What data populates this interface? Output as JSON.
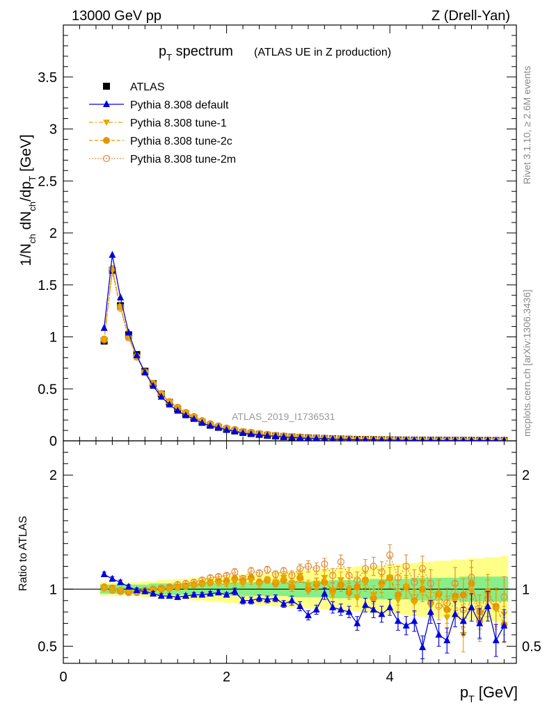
{
  "header": {
    "energy": "13000 GeV pp",
    "process": "Z (Drell-Yan)",
    "title_main": "p",
    "title_sub": "T",
    "title_rest": " spectrum",
    "title_extra": "(ATLAS UE in Z production)",
    "analysis": "ATLAS_2019_I1736531",
    "side_rivet": "Rivet 3.1.10, ≥ 2.6M events",
    "side_mcplots": "mcplots.cern.ch [arXiv:1306.3436]"
  },
  "axes": {
    "ylabel_main": "1/N",
    "ylabel_sub1": "ch",
    "ylabel_mid": " dN",
    "ylabel_sub2": "ch",
    "ylabel_mid2": "/dp",
    "ylabel_sub3": "T",
    "ylabel_unit": " [GeV]",
    "ratio_ylabel": "Ratio to ATLAS",
    "xlabel_main": "p",
    "xlabel_sub": "T",
    "xlabel_unit": " [GeV]"
  },
  "legend": [
    {
      "label": "ATLAS"
    },
    {
      "label": "Pythia 8.308 default"
    },
    {
      "label": "Pythia 8.308 tune-1"
    },
    {
      "label": "Pythia 8.308 tune-2c"
    },
    {
      "label": "Pythia 8.308 tune-2m"
    }
  ],
  "colors": {
    "data": "#000000",
    "default": "#0000dd",
    "tune1": "#e5a800",
    "tune2c": "#e59400",
    "tune2m": "#df8c3c",
    "band_outer": "#ffff88",
    "band_inner": "#88ee88"
  },
  "chart_data": {
    "type": "scatter",
    "xlim": [
      0,
      5.55
    ],
    "main_ylim": [
      0,
      4.0
    ],
    "ratio_ylim": [
      0.35,
      2.3
    ],
    "xticks": [
      0,
      2,
      4
    ],
    "main_yticks": [
      0,
      0.5,
      1,
      1.5,
      2,
      2.5,
      3,
      3.5
    ],
    "ratio_yticks": [
      0.5,
      1,
      2
    ],
    "tick_labels": {
      "x": [
        "0",
        "2",
        "4"
      ],
      "main_y": [
        "0",
        "0.5",
        "1",
        "1.5",
        "2",
        "2.5",
        "3",
        "3.5"
      ],
      "ratio_y": [
        "0.5",
        "1",
        "2"
      ]
    },
    "x": [
      0.5,
      0.6,
      0.7,
      0.8,
      0.9,
      1.0,
      1.1,
      1.2,
      1.3,
      1.4,
      1.5,
      1.6,
      1.7,
      1.8,
      1.9,
      2.0,
      2.1,
      2.2,
      2.3,
      2.4,
      2.5,
      2.6,
      2.7,
      2.8,
      2.9,
      3.0,
      3.1,
      3.2,
      3.3,
      3.4,
      3.5,
      3.6,
      3.7,
      3.8,
      3.9,
      4.0,
      4.1,
      4.2,
      4.3,
      4.4,
      4.5,
      4.6,
      4.7,
      4.8,
      4.9,
      5.0,
      5.1,
      5.2,
      5.3,
      5.4
    ],
    "data": [
      0.96,
      1.64,
      1.3,
      1.02,
      0.83,
      0.67,
      0.55,
      0.45,
      0.37,
      0.31,
      0.26,
      0.22,
      0.18,
      0.15,
      0.13,
      0.11,
      0.095,
      0.082,
      0.071,
      0.062,
      0.054,
      0.047,
      0.041,
      0.036,
      0.032,
      0.028,
      0.025,
      0.022,
      0.019,
      0.017,
      0.015,
      0.013,
      0.012,
      0.011,
      0.01,
      0.009,
      0.008,
      0.007,
      0.0065,
      0.006,
      0.0055,
      0.005,
      0.0045,
      0.0042,
      0.004,
      0.0037,
      0.0034,
      0.0031,
      0.0029,
      0.0027
    ],
    "band_inner": [
      0.04,
      0.04,
      0.04,
      0.04,
      0.04,
      0.04,
      0.05,
      0.05,
      0.05,
      0.05,
      0.05,
      0.05,
      0.05,
      0.05,
      0.05,
      0.05,
      0.06,
      0.06,
      0.06,
      0.06,
      0.06,
      0.06,
      0.06,
      0.07,
      0.07,
      0.07,
      0.07,
      0.07,
      0.08,
      0.08,
      0.08,
      0.08,
      0.08,
      0.09,
      0.09,
      0.09,
      0.09,
      0.09,
      0.1,
      0.1,
      0.1,
      0.1,
      0.1,
      0.1,
      0.11,
      0.11,
      0.11,
      0.11,
      0.11,
      0.11
    ],
    "band_outer": [
      0.06,
      0.06,
      0.06,
      0.06,
      0.06,
      0.07,
      0.07,
      0.08,
      0.08,
      0.09,
      0.09,
      0.1,
      0.1,
      0.11,
      0.11,
      0.12,
      0.12,
      0.13,
      0.13,
      0.14,
      0.14,
      0.15,
      0.15,
      0.16,
      0.16,
      0.17,
      0.17,
      0.18,
      0.18,
      0.19,
      0.19,
      0.2,
      0.2,
      0.21,
      0.21,
      0.22,
      0.22,
      0.23,
      0.23,
      0.24,
      0.24,
      0.25,
      0.25,
      0.26,
      0.26,
      0.27,
      0.27,
      0.28,
      0.28,
      0.29
    ],
    "series": [
      {
        "key": "default",
        "name": "Pythia 8.308 default",
        "marker": "triangle-up",
        "line": "solid",
        "ratio": [
          1.13,
          1.09,
          1.06,
          1.02,
          0.99,
          0.98,
          0.96,
          0.94,
          0.94,
          0.93,
          0.94,
          0.95,
          0.95,
          0.96,
          0.97,
          0.95,
          0.98,
          0.9,
          0.9,
          0.92,
          0.91,
          0.92,
          0.87,
          0.9,
          0.85,
          0.77,
          0.82,
          0.96,
          0.84,
          0.82,
          0.8,
          0.7,
          0.86,
          0.82,
          0.78,
          0.84,
          0.72,
          0.68,
          0.72,
          0.49,
          0.8,
          0.6,
          0.55,
          0.78,
          0.72,
          0.84,
          0.7,
          0.85,
          0.55,
          0.68
        ],
        "ratio_err": [
          0.02,
          0.02,
          0.02,
          0.02,
          0.02,
          0.02,
          0.02,
          0.02,
          0.02,
          0.02,
          0.02,
          0.02,
          0.02,
          0.02,
          0.02,
          0.02,
          0.03,
          0.03,
          0.03,
          0.03,
          0.03,
          0.03,
          0.03,
          0.04,
          0.04,
          0.04,
          0.04,
          0.05,
          0.05,
          0.05,
          0.05,
          0.06,
          0.06,
          0.07,
          0.07,
          0.07,
          0.08,
          0.08,
          0.09,
          0.1,
          0.1,
          0.1,
          0.11,
          0.11,
          0.12,
          0.12,
          0.13,
          0.13,
          0.14,
          0.14
        ]
      },
      {
        "key": "tune1",
        "name": "Pythia 8.308 tune-1",
        "marker": "triangle-down",
        "line": "dashdot",
        "ratio": [
          1.01,
          1.0,
          0.99,
          0.98,
          0.97,
          0.98,
          0.99,
          0.99,
          1.0,
          1.01,
          1.02,
          1.03,
          1.04,
          1.05,
          1.05,
          1.04,
          1.06,
          1.05,
          1.07,
          1.04,
          1.08,
          1.06,
          1.1,
          1.05,
          1.12,
          1.03,
          1.05,
          1.1,
          0.95,
          1.08,
          1.0,
          0.92,
          1.06,
          0.95,
          1.02,
          1.1,
          0.9,
          1.02,
          0.88,
          1.06,
          0.85,
          0.96,
          0.75,
          0.9,
          0.6,
          0.98,
          0.7,
          0.92,
          0.82,
          0.78
        ],
        "ratio_err": [
          0.02,
          0.02,
          0.02,
          0.02,
          0.02,
          0.02,
          0.02,
          0.02,
          0.02,
          0.02,
          0.02,
          0.02,
          0.02,
          0.02,
          0.02,
          0.02,
          0.03,
          0.03,
          0.03,
          0.03,
          0.03,
          0.03,
          0.03,
          0.04,
          0.04,
          0.05,
          0.05,
          0.06,
          0.06,
          0.07,
          0.07,
          0.07,
          0.08,
          0.08,
          0.09,
          0.09,
          0.1,
          0.1,
          0.11,
          0.11,
          0.12,
          0.12,
          0.13,
          0.14,
          0.15,
          0.15,
          0.16,
          0.16,
          0.17,
          0.18
        ]
      },
      {
        "key": "tune2c",
        "name": "Pythia 8.308 tune-2c",
        "marker": "circle",
        "line": "dashed",
        "ratio": [
          1.02,
          1.01,
          0.99,
          0.98,
          0.98,
          0.99,
          1.0,
          1.0,
          1.01,
          1.02,
          1.03,
          1.04,
          1.05,
          1.06,
          1.07,
          1.07,
          1.09,
          1.07,
          1.1,
          1.06,
          1.08,
          1.05,
          1.08,
          1.02,
          1.1,
          1.0,
          1.04,
          1.06,
          0.99,
          1.04,
          0.97,
          1.02,
          1.08,
          0.92,
          1.05,
          1.1,
          0.95,
          1.02,
          0.9,
          1.0,
          0.88,
          0.96,
          0.82,
          0.94,
          0.95,
          1.05,
          0.8,
          0.98,
          0.85,
          0.69
        ],
        "ratio_err": [
          0.02,
          0.02,
          0.02,
          0.02,
          0.02,
          0.02,
          0.02,
          0.02,
          0.02,
          0.02,
          0.02,
          0.02,
          0.02,
          0.02,
          0.02,
          0.02,
          0.03,
          0.03,
          0.03,
          0.03,
          0.03,
          0.03,
          0.03,
          0.04,
          0.04,
          0.04,
          0.05,
          0.05,
          0.06,
          0.06,
          0.06,
          0.07,
          0.07,
          0.08,
          0.08,
          0.09,
          0.09,
          0.1,
          0.1,
          0.11,
          0.11,
          0.12,
          0.12,
          0.13,
          0.14,
          0.14,
          0.15,
          0.15,
          0.16,
          0.16
        ]
      },
      {
        "key": "tune2m",
        "name": "Pythia 8.308 tune-2m",
        "marker": "open-circle",
        "line": "dotted",
        "ratio": [
          1.01,
          0.99,
          0.98,
          0.97,
          0.97,
          0.99,
          1.0,
          1.01,
          1.02,
          1.04,
          1.05,
          1.06,
          1.08,
          1.1,
          1.11,
          1.12,
          1.15,
          1.09,
          1.16,
          1.14,
          1.17,
          1.13,
          1.16,
          1.12,
          1.18,
          1.2,
          1.18,
          1.22,
          1.12,
          1.24,
          1.12,
          1.08,
          1.18,
          1.2,
          1.15,
          1.3,
          1.1,
          1.2,
          1.06,
          1.18,
          1.05,
          0.85,
          0.88,
          1.05,
          0.82,
          1.1,
          0.72,
          0.92,
          0.84,
          0.93
        ],
        "ratio_err": [
          0.02,
          0.02,
          0.02,
          0.02,
          0.02,
          0.02,
          0.02,
          0.02,
          0.02,
          0.02,
          0.02,
          0.02,
          0.02,
          0.02,
          0.02,
          0.02,
          0.03,
          0.03,
          0.03,
          0.03,
          0.03,
          0.03,
          0.03,
          0.04,
          0.04,
          0.05,
          0.05,
          0.05,
          0.06,
          0.06,
          0.07,
          0.07,
          0.08,
          0.08,
          0.09,
          0.09,
          0.1,
          0.1,
          0.11,
          0.11,
          0.12,
          0.12,
          0.13,
          0.14,
          0.15,
          0.15,
          0.16,
          0.16,
          0.17,
          0.18
        ]
      }
    ]
  }
}
